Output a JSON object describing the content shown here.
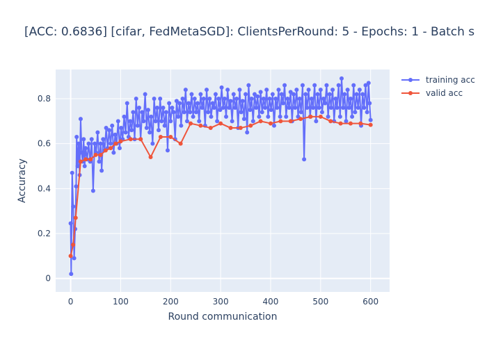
{
  "chart_data": {
    "type": "line",
    "title": "[ACC: 0.6836] [cifar, FedMetaSGD]: ClientsPerRound: 5 - Epochs: 1 - Batch s",
    "xlabel": "Round communication",
    "ylabel": "Accuracy",
    "xlim": [
      -30,
      638
    ],
    "ylim": [
      -0.06,
      0.93
    ],
    "x_ticks": [
      0,
      100,
      200,
      300,
      400,
      500,
      600
    ],
    "y_ticks": [
      0,
      0.2,
      0.4,
      0.6,
      0.8
    ],
    "grid": true,
    "legend_placement": "top-right",
    "series": [
      {
        "name": "training acc",
        "color": "#636efa",
        "points": [
          [
            0,
            0.245
          ],
          [
            1,
            0.02
          ],
          [
            3,
            0.47
          ],
          [
            5,
            0.32
          ],
          [
            7,
            0.09
          ],
          [
            9,
            0.22
          ],
          [
            11,
            0.41
          ],
          [
            12,
            0.63
          ],
          [
            14,
            0.5
          ],
          [
            16,
            0.6
          ],
          [
            18,
            0.46
          ],
          [
            20,
            0.71
          ],
          [
            22,
            0.56
          ],
          [
            24,
            0.52
          ],
          [
            26,
            0.62
          ],
          [
            28,
            0.5
          ],
          [
            30,
            0.58
          ],
          [
            33,
            0.53
          ],
          [
            36,
            0.6
          ],
          [
            39,
            0.52
          ],
          [
            42,
            0.62
          ],
          [
            45,
            0.39
          ],
          [
            48,
            0.6
          ],
          [
            51,
            0.56
          ],
          [
            54,
            0.65
          ],
          [
            57,
            0.52
          ],
          [
            60,
            0.6
          ],
          [
            62,
            0.48
          ],
          [
            65,
            0.62
          ],
          [
            68,
            0.57
          ],
          [
            71,
            0.67
          ],
          [
            74,
            0.58
          ],
          [
            77,
            0.66
          ],
          [
            80,
            0.6
          ],
          [
            83,
            0.68
          ],
          [
            86,
            0.56
          ],
          [
            89,
            0.64
          ],
          [
            92,
            0.6
          ],
          [
            95,
            0.7
          ],
          [
            98,
            0.58
          ],
          [
            101,
            0.67
          ],
          [
            104,
            0.62
          ],
          [
            107,
            0.72
          ],
          [
            110,
            0.65
          ],
          [
            113,
            0.78
          ],
          [
            116,
            0.63
          ],
          [
            119,
            0.7
          ],
          [
            122,
            0.66
          ],
          [
            125,
            0.74
          ],
          [
            128,
            0.62
          ],
          [
            131,
            0.8
          ],
          [
            134,
            0.68
          ],
          [
            137,
            0.76
          ],
          [
            140,
            0.62
          ],
          [
            143,
            0.74
          ],
          [
            146,
            0.7
          ],
          [
            149,
            0.82
          ],
          [
            152,
            0.67
          ],
          [
            155,
            0.75
          ],
          [
            158,
            0.65
          ],
          [
            161,
            0.72
          ],
          [
            164,
            0.6
          ],
          [
            167,
            0.8
          ],
          [
            170,
            0.7
          ],
          [
            173,
            0.76
          ],
          [
            176,
            0.66
          ],
          [
            179,
            0.8
          ],
          [
            182,
            0.7
          ],
          [
            185,
            0.76
          ],
          [
            188,
            0.68
          ],
          [
            191,
            0.74
          ],
          [
            194,
            0.57
          ],
          [
            197,
            0.78
          ],
          [
            200,
            0.7
          ],
          [
            203,
            0.76
          ],
          [
            206,
            0.74
          ],
          [
            209,
            0.62
          ],
          [
            212,
            0.79
          ],
          [
            215,
            0.72
          ],
          [
            218,
            0.78
          ],
          [
            221,
            0.68
          ],
          [
            224,
            0.8
          ],
          [
            227,
            0.74
          ],
          [
            230,
            0.84
          ],
          [
            233,
            0.7
          ],
          [
            236,
            0.78
          ],
          [
            239,
            0.74
          ],
          [
            242,
            0.82
          ],
          [
            245,
            0.72
          ],
          [
            248,
            0.8
          ],
          [
            251,
            0.74
          ],
          [
            254,
            0.78
          ],
          [
            257,
            0.7
          ],
          [
            260,
            0.82
          ],
          [
            263,
            0.76
          ],
          [
            266,
            0.8
          ],
          [
            269,
            0.68
          ],
          [
            272,
            0.84
          ],
          [
            275,
            0.74
          ],
          [
            278,
            0.8
          ],
          [
            281,
            0.72
          ],
          [
            284,
            0.78
          ],
          [
            287,
            0.76
          ],
          [
            290,
            0.82
          ],
          [
            293,
            0.7
          ],
          [
            296,
            0.8
          ],
          [
            299,
            0.75
          ],
          [
            302,
            0.85
          ],
          [
            305,
            0.76
          ],
          [
            308,
            0.8
          ],
          [
            311,
            0.72
          ],
          [
            314,
            0.84
          ],
          [
            317,
            0.76
          ],
          [
            320,
            0.79
          ],
          [
            323,
            0.7
          ],
          [
            326,
            0.82
          ],
          [
            329,
            0.76
          ],
          [
            332,
            0.8
          ],
          [
            335,
            0.67
          ],
          [
            338,
            0.84
          ],
          [
            341,
            0.74
          ],
          [
            344,
            0.79
          ],
          [
            347,
            0.71
          ],
          [
            350,
            0.82
          ],
          [
            353,
            0.65
          ],
          [
            356,
            0.86
          ],
          [
            359,
            0.75
          ],
          [
            362,
            0.8
          ],
          [
            365,
            0.7
          ],
          [
            368,
            0.82
          ],
          [
            371,
            0.76
          ],
          [
            374,
            0.81
          ],
          [
            377,
            0.72
          ],
          [
            380,
            0.83
          ],
          [
            383,
            0.74
          ],
          [
            386,
            0.8
          ],
          [
            389,
            0.76
          ],
          [
            392,
            0.84
          ],
          [
            395,
            0.72
          ],
          [
            398,
            0.8
          ],
          [
            401,
            0.75
          ],
          [
            404,
            0.82
          ],
          [
            407,
            0.68
          ],
          [
            410,
            0.8
          ],
          [
            413,
            0.76
          ],
          [
            416,
            0.84
          ],
          [
            419,
            0.72
          ],
          [
            422,
            0.82
          ],
          [
            425,
            0.78
          ],
          [
            428,
            0.86
          ],
          [
            431,
            0.72
          ],
          [
            434,
            0.8
          ],
          [
            437,
            0.76
          ],
          [
            440,
            0.83
          ],
          [
            443,
            0.7
          ],
          [
            446,
            0.82
          ],
          [
            449,
            0.76
          ],
          [
            452,
            0.84
          ],
          [
            455,
            0.72
          ],
          [
            458,
            0.8
          ],
          [
            461,
            0.74
          ],
          [
            464,
            0.86
          ],
          [
            467,
            0.53
          ],
          [
            470,
            0.82
          ],
          [
            473,
            0.76
          ],
          [
            476,
            0.84
          ],
          [
            479,
            0.72
          ],
          [
            482,
            0.8
          ],
          [
            485,
            0.76
          ],
          [
            488,
            0.86
          ],
          [
            491,
            0.7
          ],
          [
            494,
            0.82
          ],
          [
            497,
            0.76
          ],
          [
            500,
            0.84
          ],
          [
            503,
            0.74
          ],
          [
            506,
            0.8
          ],
          [
            509,
            0.78
          ],
          [
            512,
            0.86
          ],
          [
            515,
            0.72
          ],
          [
            518,
            0.82
          ],
          [
            521,
            0.76
          ],
          [
            524,
            0.84
          ],
          [
            527,
            0.7
          ],
          [
            530,
            0.8
          ],
          [
            533,
            0.76
          ],
          [
            536,
            0.86
          ],
          [
            539,
            0.72
          ],
          [
            542,
            0.89
          ],
          [
            545,
            0.76
          ],
          [
            548,
            0.82
          ],
          [
            551,
            0.7
          ],
          [
            554,
            0.84
          ],
          [
            557,
            0.76
          ],
          [
            560,
            0.8
          ],
          [
            563,
            0.72
          ],
          [
            566,
            0.86
          ],
          [
            569,
            0.74
          ],
          [
            572,
            0.82
          ],
          [
            575,
            0.76
          ],
          [
            578,
            0.84
          ],
          [
            581,
            0.68
          ],
          [
            584,
            0.82
          ],
          [
            587,
            0.76
          ],
          [
            590,
            0.86
          ],
          [
            593,
            0.74
          ],
          [
            596,
            0.87
          ],
          [
            598,
            0.78
          ],
          [
            600,
            0.705
          ]
        ]
      },
      {
        "name": "valid acc",
        "color": "#ef553b",
        "points": [
          [
            0,
            0.1
          ],
          [
            5,
            0.15
          ],
          [
            10,
            0.27
          ],
          [
            20,
            0.52
          ],
          [
            30,
            0.53
          ],
          [
            40,
            0.53
          ],
          [
            50,
            0.55
          ],
          [
            60,
            0.55
          ],
          [
            70,
            0.57
          ],
          [
            80,
            0.58
          ],
          [
            90,
            0.6
          ],
          [
            100,
            0.61
          ],
          [
            120,
            0.62
          ],
          [
            140,
            0.62
          ],
          [
            160,
            0.54
          ],
          [
            180,
            0.63
          ],
          [
            200,
            0.63
          ],
          [
            220,
            0.6
          ],
          [
            240,
            0.69
          ],
          [
            260,
            0.68
          ],
          [
            280,
            0.67
          ],
          [
            300,
            0.69
          ],
          [
            320,
            0.67
          ],
          [
            340,
            0.67
          ],
          [
            360,
            0.68
          ],
          [
            380,
            0.7
          ],
          [
            400,
            0.69
          ],
          [
            420,
            0.7
          ],
          [
            440,
            0.7
          ],
          [
            460,
            0.71
          ],
          [
            480,
            0.72
          ],
          [
            500,
            0.72
          ],
          [
            520,
            0.7
          ],
          [
            540,
            0.69
          ],
          [
            560,
            0.69
          ],
          [
            580,
            0.69
          ],
          [
            600,
            0.6836
          ]
        ]
      }
    ]
  }
}
